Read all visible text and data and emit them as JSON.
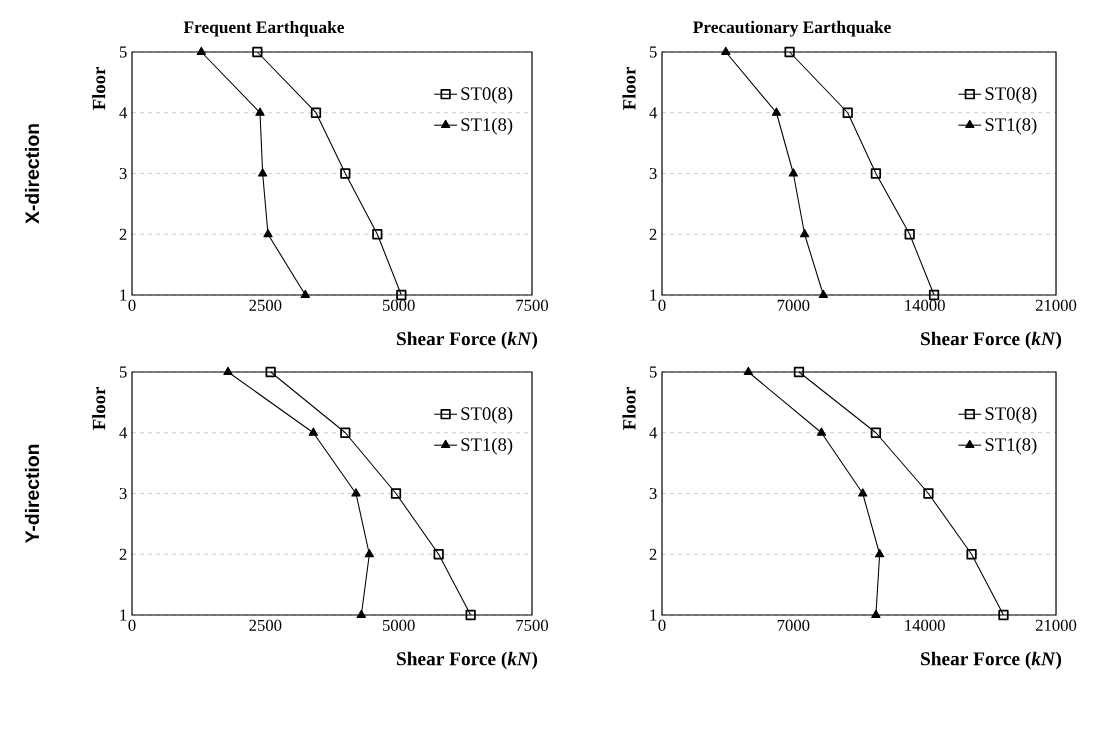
{
  "chart_data": [
    {
      "type": "line",
      "title": "Frequent Earthquake",
      "xlabel": "Shear Force (*kN*)",
      "ylabel": "Floor",
      "annotations": [
        "X-direction"
      ],
      "xlim": [
        0,
        7500
      ],
      "xticks": [
        0,
        2500,
        5000,
        7500
      ],
      "ylim": [
        1,
        5
      ],
      "yticks": [
        1,
        2,
        3,
        4,
        5
      ],
      "grid": "y",
      "legend": "top right",
      "series": [
        {
          "name": "ST0(8)",
          "color": "#000000",
          "marker": "square",
          "x": [
            2350,
            3450,
            4000,
            4600,
            5050
          ],
          "values": [
            5,
            4,
            3,
            2,
            1
          ]
        },
        {
          "name": "ST1(8)",
          "color": "#000000",
          "marker": "triangle",
          "x": [
            1300,
            2400,
            2450,
            2550,
            3250
          ],
          "values": [
            5,
            4,
            3,
            2,
            1
          ]
        }
      ]
    },
    {
      "type": "line",
      "title": "Precautionary Earthquake",
      "xlabel": "Shear Force (*kN*)",
      "ylabel": "Floor",
      "xlim": [
        0,
        21000
      ],
      "xticks": [
        0,
        7000,
        14000,
        21000
      ],
      "ylim": [
        1,
        5
      ],
      "yticks": [
        1,
        2,
        3,
        4,
        5
      ],
      "grid": "y",
      "legend": "top right",
      "series": [
        {
          "name": "ST0(8)",
          "color": "#000000",
          "marker": "square",
          "x": [
            6800,
            9900,
            11400,
            13200,
            14500
          ],
          "values": [
            5,
            4,
            3,
            2,
            1
          ]
        },
        {
          "name": "ST1(8)",
          "color": "#000000",
          "marker": "triangle",
          "x": [
            3400,
            6100,
            7000,
            7600,
            8600
          ],
          "values": [
            5,
            4,
            3,
            2,
            1
          ]
        }
      ]
    },
    {
      "type": "line",
      "xlabel": "Shear Force (*kN*)",
      "ylabel": "Floor",
      "annotations": [
        "Y-direction"
      ],
      "xlim": [
        0,
        7500
      ],
      "xticks": [
        0,
        2500,
        5000,
        7500
      ],
      "ylim": [
        1,
        5
      ],
      "yticks": [
        1,
        2,
        3,
        4,
        5
      ],
      "grid": "y",
      "legend": "top right",
      "series": [
        {
          "name": "ST0(8)",
          "color": "#000000",
          "marker": "square",
          "x": [
            2600,
            4000,
            4950,
            5750,
            6350
          ],
          "values": [
            5,
            4,
            3,
            2,
            1
          ]
        },
        {
          "name": "ST1(8)",
          "color": "#000000",
          "marker": "triangle",
          "x": [
            1800,
            3400,
            4200,
            4450,
            4300
          ],
          "values": [
            5,
            4,
            3,
            2,
            1
          ]
        }
      ]
    },
    {
      "type": "line",
      "xlabel": "Shear Force (*kN*)",
      "ylabel": "Floor",
      "xlim": [
        0,
        21000
      ],
      "xticks": [
        0,
        7000,
        14000,
        21000
      ],
      "ylim": [
        1,
        5
      ],
      "yticks": [
        1,
        2,
        3,
        4,
        5
      ],
      "grid": "y",
      "legend": "top right",
      "series": [
        {
          "name": "ST0(8)",
          "color": "#000000",
          "marker": "square",
          "x": [
            7300,
            11400,
            14200,
            16500,
            18200
          ],
          "values": [
            5,
            4,
            3,
            2,
            1
          ]
        },
        {
          "name": "ST1(8)",
          "color": "#000000",
          "marker": "triangle",
          "x": [
            4600,
            8500,
            10700,
            11600,
            11400
          ],
          "values": [
            5,
            4,
            3,
            2,
            1
          ]
        }
      ]
    }
  ]
}
